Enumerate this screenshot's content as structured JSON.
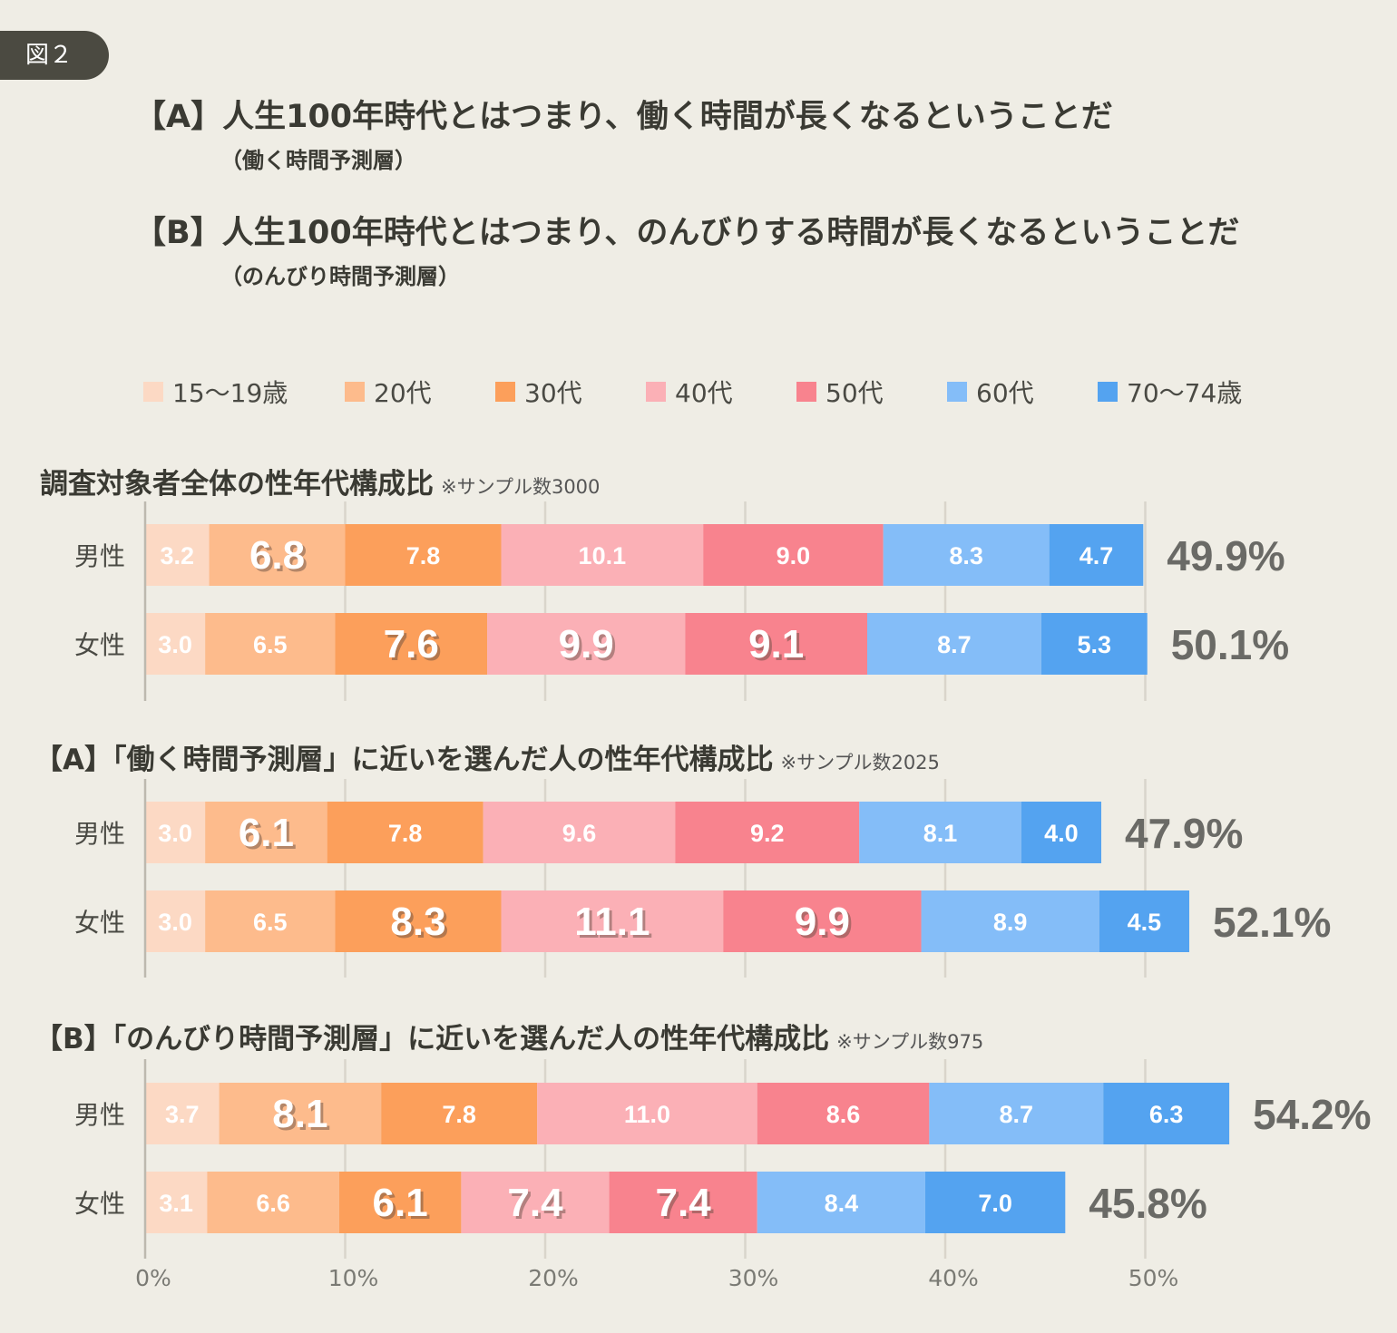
{
  "figure_label": "図２",
  "definitions": [
    {
      "main": "【A】人生100年時代とはつまり、働く時間が長くなるということだ",
      "sub": "（働く時間予測層）"
    },
    {
      "main": "【B】人生100年時代とはつまり、のんびりする時間が長くなるということだ",
      "sub": "（のんびり時間予測層）"
    }
  ],
  "chart_data": {
    "type": "bar",
    "orientation": "horizontal-stacked",
    "x_ticks": [
      "0%",
      "10%",
      "20%",
      "30%",
      "40%",
      "50%"
    ],
    "xlim": [
      0,
      50
    ],
    "legend": [
      {
        "label": "15〜19歳",
        "color": "#fcd9c4"
      },
      {
        "label": "20代",
        "color": "#fdbb8c"
      },
      {
        "label": "30代",
        "color": "#fc9f5b"
      },
      {
        "label": "40代",
        "color": "#fbb0b6"
      },
      {
        "label": "50代",
        "color": "#f8838e"
      },
      {
        "label": "60代",
        "color": "#84bdf8"
      },
      {
        "label": "70〜74歳",
        "color": "#54a3f0"
      }
    ],
    "groups": [
      {
        "title": "調査対象者全体の性年代構成比",
        "note": "※サンプル数3000",
        "rows": [
          {
            "label": "男性",
            "values": [
              3.2,
              6.8,
              7.8,
              10.1,
              9.0,
              8.3,
              4.7
            ],
            "display": [
              "3.2",
              "6.8",
              "7.8",
              "10.1",
              "9.0",
              "8.3",
              "4.7"
            ],
            "highlight": [
              false,
              true,
              false,
              false,
              false,
              false,
              false
            ],
            "total": "49.9%"
          },
          {
            "label": "女性",
            "values": [
              3.0,
              6.5,
              7.6,
              9.9,
              9.1,
              8.7,
              5.3
            ],
            "display": [
              "3.0",
              "6.5",
              "7.6",
              "9.9",
              "9.1",
              "8.7",
              "5.3"
            ],
            "highlight": [
              false,
              false,
              true,
              true,
              true,
              false,
              false
            ],
            "total": "50.1%"
          }
        ]
      },
      {
        "title": "【A】「働く時間予測層」に近いを選んだ人の性年代構成比",
        "note": "※サンプル数2025",
        "rows": [
          {
            "label": "男性",
            "values": [
              3.0,
              6.1,
              7.8,
              9.6,
              9.2,
              8.1,
              4.0
            ],
            "display": [
              "3.0",
              "6.1",
              "7.8",
              "9.6",
              "9.2",
              "8.1",
              "4.0"
            ],
            "highlight": [
              false,
              true,
              false,
              false,
              false,
              false,
              false
            ],
            "total": "47.9%"
          },
          {
            "label": "女性",
            "values": [
              3.0,
              6.5,
              8.3,
              11.1,
              9.9,
              8.9,
              4.5
            ],
            "display": [
              "3.0",
              "6.5",
              "8.3",
              "11.1",
              "9.9",
              "8.9",
              "4.5"
            ],
            "highlight": [
              false,
              false,
              true,
              true,
              true,
              false,
              false
            ],
            "total": "52.1%"
          }
        ]
      },
      {
        "title": "【B】「のんびり時間予測層」に近いを選んだ人の性年代構成比",
        "note": "※サンプル数975",
        "rows": [
          {
            "label": "男性",
            "values": [
              3.7,
              8.1,
              7.8,
              11.0,
              8.6,
              8.7,
              6.3
            ],
            "display": [
              "3.7",
              "8.1",
              "7.8",
              "11.0",
              "8.6",
              "8.7",
              "6.3"
            ],
            "highlight": [
              false,
              true,
              false,
              false,
              false,
              false,
              false
            ],
            "total": "54.2%"
          },
          {
            "label": "女性",
            "values": [
              3.1,
              6.6,
              6.1,
              7.4,
              7.4,
              8.4,
              7.0
            ],
            "display": [
              "3.1",
              "6.6",
              "6.1",
              "7.4",
              "7.4",
              "8.4",
              "7.0"
            ],
            "highlight": [
              false,
              false,
              true,
              true,
              true,
              false,
              false
            ],
            "total": "45.8%"
          }
        ]
      }
    ]
  }
}
